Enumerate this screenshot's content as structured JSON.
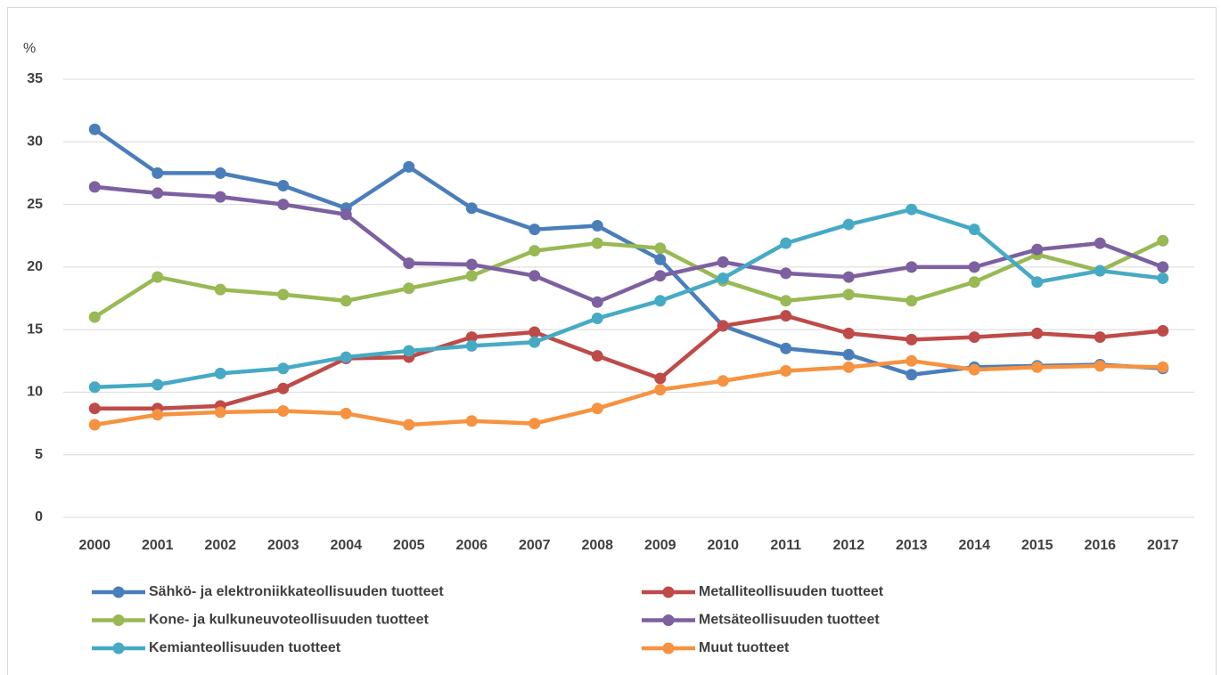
{
  "chart_data": {
    "type": "line",
    "y_label": "%",
    "categories": [
      "2000",
      "2001",
      "2002",
      "2003",
      "2004",
      "2005",
      "2006",
      "2007",
      "2008",
      "2009",
      "2010",
      "2011",
      "2012",
      "2013",
      "2014",
      "2015",
      "2016",
      "2017"
    ],
    "series": [
      {
        "name": "Sähkö- ja elektroniikkateollisuuden  tuotteet",
        "color": "#4a7ebb",
        "values": [
          31,
          27.5,
          27.5,
          26.5,
          24.7,
          28,
          24.7,
          23,
          23.3,
          20.6,
          15.3,
          13.5,
          13,
          11.4,
          12,
          12.1,
          12.2,
          11.9
        ]
      },
      {
        "name": "Metalliteollisuuden tuotteet",
        "color": "#be4b48",
        "values": [
          8.7,
          8.7,
          8.9,
          10.3,
          12.7,
          12.8,
          14.4,
          14.8,
          12.9,
          11.1,
          15.3,
          16.1,
          14.7,
          14.2,
          14.4,
          14.7,
          14.4,
          14.9
        ]
      },
      {
        "name": "Kone- ja kulkuneuvoteollisuuden tuotteet",
        "color": "#98b954",
        "values": [
          16,
          19.2,
          18.2,
          17.8,
          17.3,
          18.3,
          19.3,
          21.3,
          21.9,
          21.5,
          18.9,
          17.3,
          17.8,
          17.3,
          18.8,
          21,
          19.7,
          22.1
        ]
      },
      {
        "name": "Metsäteollisuuden tuotteet",
        "color": "#7d60a0",
        "values": [
          26.4,
          25.9,
          25.6,
          25,
          24.2,
          20.3,
          20.2,
          19.3,
          17.2,
          19.3,
          20.4,
          19.5,
          19.2,
          20,
          20,
          21.4,
          21.9,
          20
        ]
      },
      {
        "name": "Kemianteollisuuden tuotteet",
        "color": "#46aac5",
        "values": [
          10.4,
          10.6,
          11.5,
          11.9,
          12.8,
          13.3,
          13.7,
          14,
          15.9,
          17.3,
          19.1,
          21.9,
          23.4,
          24.6,
          23,
          18.8,
          19.7,
          19.1
        ]
      },
      {
        "name": "Muut tuotteet",
        "color": "#f69240",
        "values": [
          7.4,
          8.2,
          8.4,
          8.5,
          8.3,
          7.4,
          7.7,
          7.5,
          8.7,
          10.2,
          10.9,
          11.7,
          12,
          12.5,
          11.8,
          12,
          12.1,
          12
        ]
      }
    ],
    "ylim": [
      0,
      35
    ],
    "yticks": [
      0,
      5,
      10,
      15,
      20,
      25,
      30,
      35
    ],
    "grid": true
  }
}
